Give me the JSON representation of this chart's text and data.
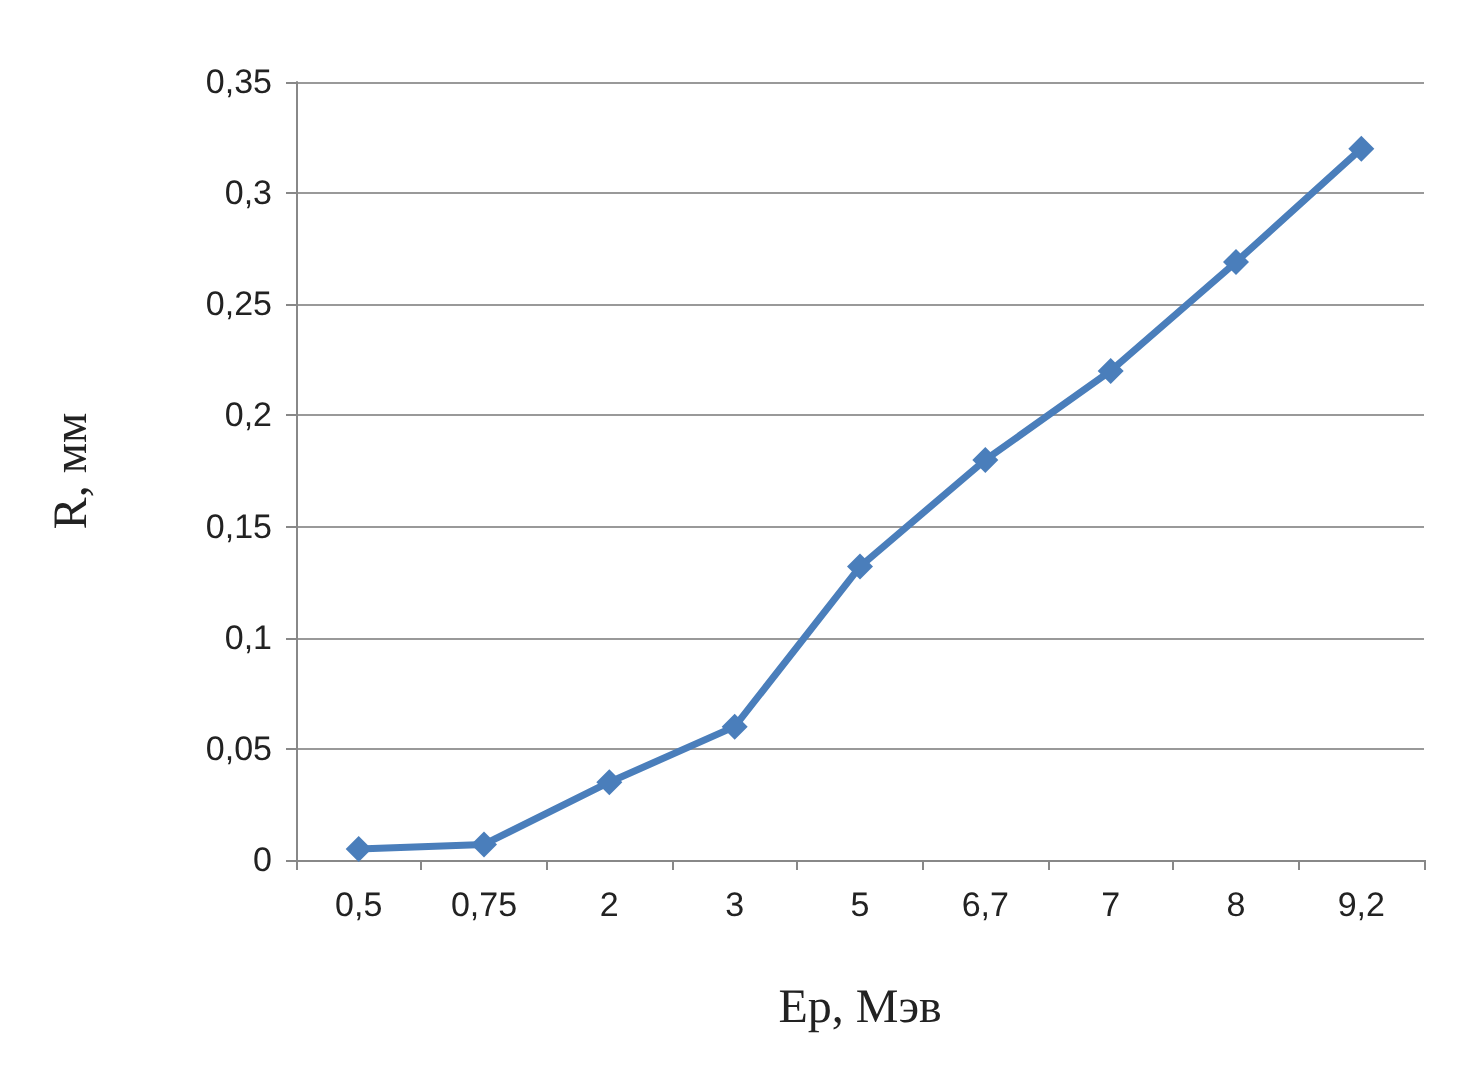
{
  "chart_data": {
    "type": "line",
    "xlabel": "Ep, Мэв",
    "ylabel": "R, мм",
    "categories": [
      "0,5",
      "0,75",
      "2",
      "3",
      "5",
      "6,7",
      "7",
      "8",
      "9,2"
    ],
    "series": [
      {
        "color": "#4a7ebb",
        "values": [
          0.005,
          0.007,
          0.035,
          0.06,
          0.132,
          0.18,
          0.22,
          0.269,
          0.32
        ]
      }
    ],
    "ylim": [
      0,
      0.35
    ],
    "yticks": [
      0,
      {
        "value": 0.05,
        "label": "0,05"
      },
      {
        "value": 0.1,
        "label": "0,1"
      },
      {
        "value": 0.15,
        "label": "0,15"
      },
      {
        "value": 0.2,
        "label": "0,2"
      },
      {
        "value": 0.25,
        "label": "0,25"
      },
      {
        "value": 0.3,
        "label": "0,3"
      },
      {
        "value": 0.35,
        "label": "0,35"
      }
    ],
    "grid": "y",
    "marker": "diamond",
    "line_style": "solid"
  }
}
